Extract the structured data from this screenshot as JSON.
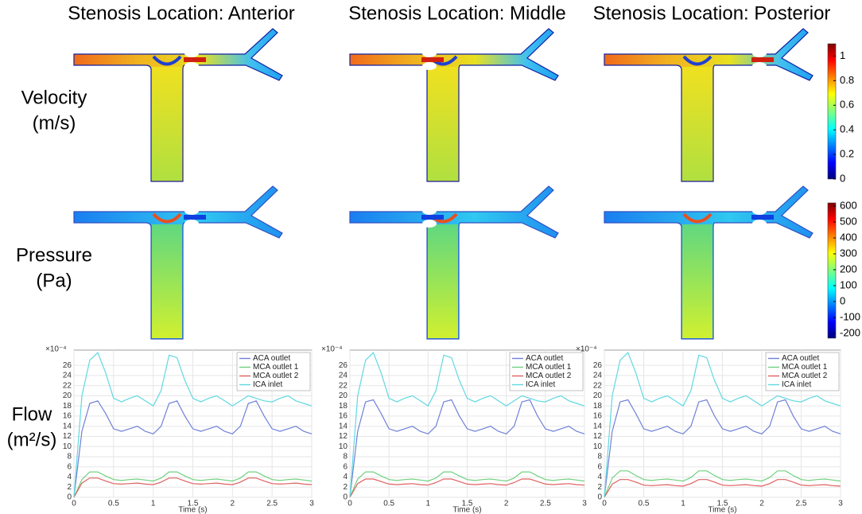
{
  "column_titles": [
    "Stenosis Location: Anterior",
    "Stenosis Location: Middle",
    "Stenosis Location: Posterior"
  ],
  "row_labels": [
    {
      "label": "Velocity",
      "unit": "(m/s)"
    },
    {
      "label": "Pressure",
      "unit": "(Pa)"
    },
    {
      "label": "Flow",
      "unit": "(m²/s)"
    }
  ],
  "colorbars": [
    {
      "lim": [
        0,
        1.1
      ],
      "ticks": [
        0,
        0.2,
        0.4,
        0.6,
        0.8,
        1
      ]
    },
    {
      "lim": [
        -230,
        620
      ],
      "ticks": [
        -200,
        -100,
        0,
        100,
        200,
        300,
        400,
        500,
        600
      ]
    }
  ],
  "chart_data": [
    {
      "type": "line",
      "x_label": "Time (s)",
      "y_multiplier": "×10⁻⁴",
      "legend": "upper right",
      "grid": true,
      "xlim": [
        0,
        3
      ],
      "ylim": [
        0,
        29
      ],
      "xticks": [
        0,
        0.5,
        1,
        1.5,
        2,
        2.5,
        3
      ],
      "yticks": [
        0,
        2,
        4,
        6,
        8,
        10,
        12,
        14,
        16,
        18,
        20,
        22,
        24,
        26
      ],
      "x": [
        0,
        0.1,
        0.2,
        0.3,
        0.4,
        0.5,
        0.6,
        0.7,
        0.8,
        0.9,
        1,
        1.1,
        1.2,
        1.3,
        1.4,
        1.5,
        1.6,
        1.7,
        1.8,
        1.9,
        2,
        2.1,
        2.2,
        2.3,
        2.4,
        2.5,
        2.6,
        2.7,
        2.8,
        2.9,
        3
      ],
      "series": [
        {
          "name": "ACA outlet",
          "color": "#7080d8",
          "values": [
            0,
            13,
            18.5,
            19,
            16.5,
            13.5,
            13,
            13.5,
            14,
            13,
            12.5,
            14,
            18.5,
            19,
            16,
            13.5,
            13,
            13.5,
            14,
            13,
            12.5,
            14,
            18.5,
            19,
            16,
            13.5,
            13,
            13.5,
            14,
            13,
            12.5
          ]
        },
        {
          "name": "MCA outlet 1",
          "color": "#70d080",
          "values": [
            0,
            3.5,
            5,
            5,
            4.2,
            3.5,
            3.3,
            3.5,
            3.6,
            3.4,
            3.2,
            3.8,
            5,
            5,
            4.2,
            3.5,
            3.3,
            3.5,
            3.6,
            3.4,
            3.2,
            3.8,
            5,
            5,
            4.2,
            3.5,
            3.3,
            3.5,
            3.6,
            3.4,
            3.2
          ]
        },
        {
          "name": "MCA outlet 2",
          "color": "#e06060",
          "values": [
            0,
            2.8,
            3.8,
            3.8,
            3.2,
            2.7,
            2.6,
            2.7,
            2.8,
            2.6,
            2.5,
            3,
            3.8,
            3.8,
            3.2,
            2.7,
            2.6,
            2.7,
            2.8,
            2.6,
            2.5,
            3,
            3.8,
            3.8,
            3.2,
            2.7,
            2.6,
            2.7,
            2.8,
            2.6,
            2.5
          ]
        },
        {
          "name": "ICA inlet",
          "color": "#60d8e0",
          "values": [
            0,
            20,
            27,
            28.5,
            24.5,
            19.5,
            18.8,
            19.5,
            20,
            19,
            18,
            21,
            28,
            27.5,
            23,
            19.5,
            18.8,
            19.5,
            20,
            19,
            18,
            19,
            20,
            19.5,
            19,
            18.8,
            19.5,
            20,
            19,
            18.5,
            18
          ]
        }
      ]
    },
    {
      "type": "line",
      "x_label": "Time (s)",
      "y_multiplier": "×10⁻⁴",
      "legend": "upper right",
      "grid": true,
      "xlim": [
        0,
        3
      ],
      "ylim": [
        0,
        29
      ],
      "xticks": [
        0,
        0.5,
        1,
        1.5,
        2,
        2.5,
        3
      ],
      "yticks": [
        0,
        2,
        4,
        6,
        8,
        10,
        12,
        14,
        16,
        18,
        20,
        22,
        24,
        26
      ],
      "x": [
        0,
        0.1,
        0.2,
        0.3,
        0.4,
        0.5,
        0.6,
        0.7,
        0.8,
        0.9,
        1,
        1.1,
        1.2,
        1.3,
        1.4,
        1.5,
        1.6,
        1.7,
        1.8,
        1.9,
        2,
        2.1,
        2.2,
        2.3,
        2.4,
        2.5,
        2.6,
        2.7,
        2.8,
        2.9,
        3
      ],
      "series": [
        {
          "name": "ACA outlet",
          "color": "#7080d8",
          "values": [
            0,
            13,
            18.8,
            19.2,
            16.5,
            13.5,
            13,
            13.5,
            14,
            13,
            12.5,
            14,
            18.8,
            19.2,
            16,
            13.5,
            13,
            13.5,
            14,
            13,
            12.5,
            14,
            18.8,
            19.2,
            16,
            13.5,
            13,
            13.5,
            14,
            13,
            12.5
          ]
        },
        {
          "name": "MCA outlet 1",
          "color": "#70d080",
          "values": [
            0,
            3.6,
            5,
            5,
            4.2,
            3.5,
            3.3,
            3.5,
            3.6,
            3.4,
            3.2,
            3.8,
            5,
            5,
            4.2,
            3.5,
            3.3,
            3.5,
            3.6,
            3.4,
            3.2,
            3.8,
            5,
            5,
            4.2,
            3.5,
            3.3,
            3.5,
            3.6,
            3.4,
            3.2
          ]
        },
        {
          "name": "MCA outlet 2",
          "color": "#e06060",
          "values": [
            0,
            2.7,
            3.6,
            3.6,
            3.1,
            2.6,
            2.5,
            2.6,
            2.7,
            2.5,
            2.4,
            2.9,
            3.6,
            3.6,
            3.1,
            2.6,
            2.5,
            2.6,
            2.7,
            2.5,
            2.4,
            2.9,
            3.6,
            3.6,
            3.1,
            2.6,
            2.5,
            2.6,
            2.7,
            2.5,
            2.4
          ]
        },
        {
          "name": "ICA inlet",
          "color": "#60d8e0",
          "values": [
            0,
            20,
            27,
            28.5,
            24.5,
            19.5,
            18.8,
            19.5,
            20,
            19,
            18,
            21,
            28,
            27.5,
            23,
            19.5,
            18.8,
            19.5,
            20,
            19,
            18,
            19,
            20,
            19.5,
            19,
            18.8,
            19.5,
            20,
            19,
            18.5,
            18
          ]
        }
      ]
    },
    {
      "type": "line",
      "x_label": "Time (s)",
      "y_multiplier": "×10⁻⁴",
      "legend": "upper right",
      "grid": true,
      "xlim": [
        0,
        3
      ],
      "ylim": [
        0,
        29
      ],
      "xticks": [
        0,
        0.5,
        1,
        1.5,
        2,
        2.5,
        3
      ],
      "yticks": [
        0,
        2,
        4,
        6,
        8,
        10,
        12,
        14,
        16,
        18,
        20,
        22,
        24,
        26
      ],
      "x": [
        0,
        0.1,
        0.2,
        0.3,
        0.4,
        0.5,
        0.6,
        0.7,
        0.8,
        0.9,
        1,
        1.1,
        1.2,
        1.3,
        1.4,
        1.5,
        1.6,
        1.7,
        1.8,
        1.9,
        2,
        2.1,
        2.2,
        2.3,
        2.4,
        2.5,
        2.6,
        2.7,
        2.8,
        2.9,
        3
      ],
      "series": [
        {
          "name": "ACA outlet",
          "color": "#7080d8",
          "values": [
            0,
            13,
            18.8,
            19.2,
            16.5,
            13.5,
            13,
            13.5,
            14,
            13,
            12.5,
            14,
            18.8,
            19.2,
            16,
            13.5,
            13,
            13.5,
            14,
            13,
            12.5,
            14,
            18.8,
            19.2,
            16,
            13.5,
            13,
            13.5,
            14,
            13,
            12.5
          ]
        },
        {
          "name": "MCA outlet 1",
          "color": "#70d080",
          "values": [
            0,
            3.8,
            5.2,
            5.2,
            4.3,
            3.5,
            3.3,
            3.5,
            3.6,
            3.4,
            3.2,
            3.9,
            5.2,
            5.2,
            4.3,
            3.5,
            3.3,
            3.5,
            3.6,
            3.4,
            3.2,
            3.9,
            5.2,
            5.2,
            4.3,
            3.5,
            3.3,
            3.5,
            3.6,
            3.4,
            3.2
          ]
        },
        {
          "name": "MCA outlet 2",
          "color": "#e06060",
          "values": [
            0,
            2.6,
            3.5,
            3.5,
            3,
            2.4,
            2.3,
            2.4,
            2.5,
            2.3,
            2.2,
            2.7,
            3.5,
            3.5,
            3,
            2.4,
            2.3,
            2.4,
            2.5,
            2.3,
            2.2,
            2.7,
            3.5,
            3.5,
            3,
            2.4,
            2.3,
            2.4,
            2.5,
            2.3,
            2.2
          ]
        },
        {
          "name": "ICA inlet",
          "color": "#60d8e0",
          "values": [
            0,
            20,
            27,
            28.5,
            24.5,
            19.5,
            18.8,
            19.5,
            20,
            19,
            18,
            21,
            28,
            27.5,
            23,
            19.5,
            18.8,
            19.5,
            20,
            19,
            18,
            19,
            20,
            19.5,
            19,
            18.8,
            19.5,
            20,
            19,
            18.5,
            18
          ]
        }
      ]
    }
  ]
}
